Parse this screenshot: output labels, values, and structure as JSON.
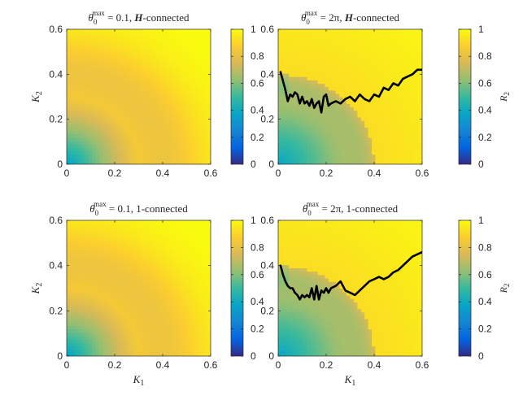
{
  "figure": {
    "colorbar_label": "R2",
    "panels": [
      {
        "title": "θ0max = 0.1, H-connected",
        "title_parts": {
          "theta": "θ",
          "sub": "0",
          "sup": "max",
          "eq": " = ",
          "value": "0.1, ",
          "conn": "H",
          "suffix": "-connected",
          "conn_script": true
        },
        "ylabel": "K2",
        "xlabel": "",
        "show_cbar_label": false,
        "has_curve": false,
        "field": {
          "pattern": "low",
          "ring": false
        }
      },
      {
        "title": "θ0max = 2π, H-connected",
        "title_parts": {
          "theta": "θ",
          "sub": "0",
          "sup": "max",
          "eq": " = ",
          "value": "2π, ",
          "conn": "H",
          "suffix": "-connected",
          "conn_script": true
        },
        "ylabel": "",
        "xlabel": "",
        "show_cbar_label": true,
        "has_curve": true,
        "field": {
          "pattern": "high",
          "ring": true
        }
      },
      {
        "title": "θ0max = 0.1, 1-connected",
        "title_parts": {
          "theta": "θ",
          "sub": "0",
          "sup": "max",
          "eq": " = ",
          "value": "0.1, ",
          "conn": "1",
          "suffix": "-connected",
          "conn_script": false
        },
        "ylabel": "K2",
        "xlabel": "K1",
        "show_cbar_label": false,
        "has_curve": false,
        "field": {
          "pattern": "low",
          "ring": false
        }
      },
      {
        "title": "θ0max = 2π, 1-connected",
        "title_parts": {
          "theta": "θ",
          "sub": "0",
          "sup": "max",
          "eq": " = ",
          "value": "2π, ",
          "conn": "1",
          "suffix": "-connected",
          "conn_script": false
        },
        "ylabel": "",
        "xlabel": "K1",
        "show_cbar_label": true,
        "has_curve": true,
        "field": {
          "pattern": "high",
          "ring": true
        }
      }
    ]
  },
  "chart_data": [
    {
      "type": "heatmap",
      "title": "θ0max = 0.1, H-connected",
      "xlabel": "",
      "ylabel": "K2",
      "xlim": [
        0,
        0.6
      ],
      "ylim": [
        0,
        0.6
      ],
      "xticks": [
        "0",
        "0.2",
        "0.4",
        "0.6"
      ],
      "yticks": [
        "0",
        "0.2",
        "0.4",
        "0.6"
      ],
      "colorbar": {
        "range": [
          0,
          1
        ],
        "ticks": [
          "0",
          "0.2",
          "0.4",
          "0.6",
          "0.8",
          "1"
        ],
        "label": ""
      },
      "curve": null
    },
    {
      "type": "heatmap",
      "title": "θ0max = 2π, H-connected",
      "xlabel": "",
      "ylabel": "",
      "xlim": [
        0,
        0.6
      ],
      "ylim": [
        0,
        0.6
      ],
      "xticks": [
        "0",
        "0.2",
        "0.4",
        "0.6"
      ],
      "yticks": [
        "0",
        "0.2",
        "0.4",
        "0.6"
      ],
      "colorbar": {
        "range": [
          0,
          1
        ],
        "ticks": [
          "0",
          "0.2",
          "0.4",
          "0.6",
          "0.8",
          "1"
        ],
        "label": "R2"
      },
      "curve": {
        "x": [
          0.01,
          0.02,
          0.03,
          0.04,
          0.05,
          0.06,
          0.07,
          0.08,
          0.09,
          0.1,
          0.11,
          0.12,
          0.13,
          0.14,
          0.15,
          0.16,
          0.17,
          0.18,
          0.19,
          0.2,
          0.21,
          0.22,
          0.24,
          0.26,
          0.28,
          0.3,
          0.32,
          0.34,
          0.36,
          0.38,
          0.4,
          0.42,
          0.44,
          0.46,
          0.48,
          0.5,
          0.52,
          0.54,
          0.56,
          0.58,
          0.6
        ],
        "y": [
          0.41,
          0.37,
          0.33,
          0.28,
          0.31,
          0.3,
          0.32,
          0.31,
          0.27,
          0.3,
          0.27,
          0.28,
          0.26,
          0.29,
          0.25,
          0.27,
          0.28,
          0.23,
          0.3,
          0.31,
          0.26,
          0.27,
          0.28,
          0.27,
          0.29,
          0.3,
          0.28,
          0.31,
          0.29,
          0.28,
          0.31,
          0.3,
          0.34,
          0.33,
          0.36,
          0.35,
          0.38,
          0.39,
          0.4,
          0.42,
          0.42
        ]
      }
    },
    {
      "type": "heatmap",
      "title": "θ0max = 0.1, 1-connected",
      "xlabel": "K1",
      "ylabel": "K2",
      "xlim": [
        0,
        0.6
      ],
      "ylim": [
        0,
        0.6
      ],
      "xticks": [
        "0",
        "0.2",
        "0.4",
        "0.6"
      ],
      "yticks": [
        "0",
        "0.2",
        "0.4",
        "0.6"
      ],
      "colorbar": {
        "range": [
          0,
          1
        ],
        "ticks": [
          "0",
          "0.2",
          "0.4",
          "0.6",
          "0.8",
          "1"
        ],
        "label": ""
      },
      "curve": null
    },
    {
      "type": "heatmap",
      "title": "θ0max = 2π, 1-connected",
      "xlabel": "K1",
      "ylabel": "",
      "xlim": [
        0,
        0.6
      ],
      "ylim": [
        0,
        0.6
      ],
      "xticks": [
        "0",
        "0.2",
        "0.4",
        "0.6"
      ],
      "yticks": [
        "0",
        "0.2",
        "0.4",
        "0.6"
      ],
      "colorbar": {
        "range": [
          0,
          1
        ],
        "ticks": [
          "0",
          "0.2",
          "0.4",
          "0.6",
          "0.8",
          "1"
        ],
        "label": "R2"
      },
      "curve": {
        "x": [
          0.01,
          0.02,
          0.03,
          0.04,
          0.05,
          0.06,
          0.07,
          0.08,
          0.09,
          0.1,
          0.11,
          0.12,
          0.13,
          0.14,
          0.15,
          0.16,
          0.17,
          0.18,
          0.19,
          0.2,
          0.21,
          0.22,
          0.24,
          0.26,
          0.28,
          0.3,
          0.32,
          0.34,
          0.36,
          0.38,
          0.4,
          0.42,
          0.44,
          0.46,
          0.48,
          0.5,
          0.52,
          0.54,
          0.56,
          0.58,
          0.6
        ],
        "y": [
          0.4,
          0.36,
          0.33,
          0.31,
          0.3,
          0.3,
          0.28,
          0.27,
          0.25,
          0.27,
          0.26,
          0.27,
          0.26,
          0.3,
          0.25,
          0.31,
          0.25,
          0.29,
          0.28,
          0.3,
          0.28,
          0.3,
          0.31,
          0.33,
          0.29,
          0.28,
          0.27,
          0.29,
          0.31,
          0.33,
          0.34,
          0.35,
          0.34,
          0.35,
          0.37,
          0.38,
          0.4,
          0.42,
          0.44,
          0.45,
          0.46
        ]
      }
    }
  ]
}
